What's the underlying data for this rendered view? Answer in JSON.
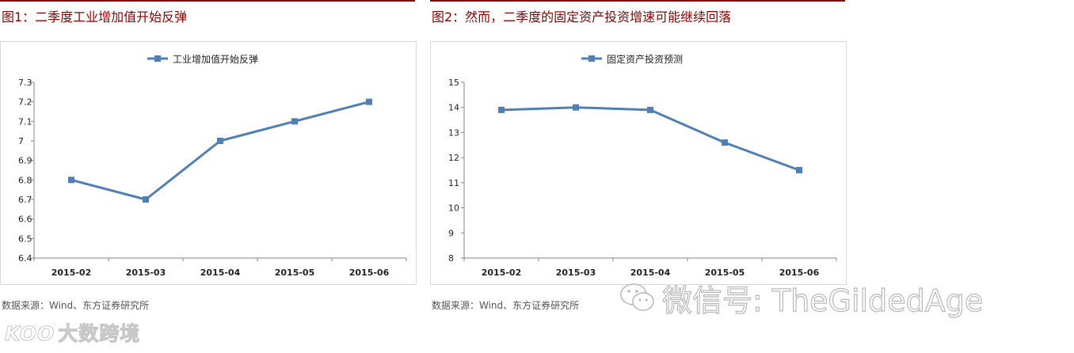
{
  "charts": [
    {
      "heading": "图1：二季度工业增加值开始反弹",
      "source": "数据来源：Wind、东方证券研究所"
    },
    {
      "heading": "图2：然而，二季度的固定资产投资增速可能继续回落",
      "source": "数据来源：Wind、东方证券研究所"
    }
  ],
  "watermarks": {
    "logo_text": "大数跨境",
    "logo_mark": "KOO",
    "wechat_text": "微信号: TheGildedAge"
  },
  "colors": {
    "heading": "#8b0000",
    "series": "#4f7fb5"
  },
  "chart_data": [
    {
      "type": "line",
      "categories": [
        "2015-02",
        "2015-03",
        "2015-04",
        "2015-05",
        "2015-06"
      ],
      "series": [
        {
          "name": "工业增加值开始反弹",
          "values": [
            6.8,
            6.7,
            7.0,
            7.1,
            7.2
          ]
        }
      ],
      "yticks": [
        "6.4",
        "6.5",
        "6.6",
        "6.7",
        "6.8",
        "6.9",
        "7",
        "7.1",
        "7.2",
        "7.3"
      ],
      "ylim": [
        6.4,
        7.3
      ],
      "legend": "top-center",
      "grid": false
    },
    {
      "type": "line",
      "categories": [
        "2015-02",
        "2015-03",
        "2015-04",
        "2015-05",
        "2015-06"
      ],
      "series": [
        {
          "name": "固定资产投资预测",
          "values": [
            13.9,
            14.0,
            13.9,
            12.6,
            11.5
          ]
        }
      ],
      "yticks": [
        "8",
        "9",
        "10",
        "11",
        "12",
        "13",
        "14",
        "15"
      ],
      "ylim": [
        8,
        15
      ],
      "legend": "top-center",
      "grid": false
    }
  ]
}
